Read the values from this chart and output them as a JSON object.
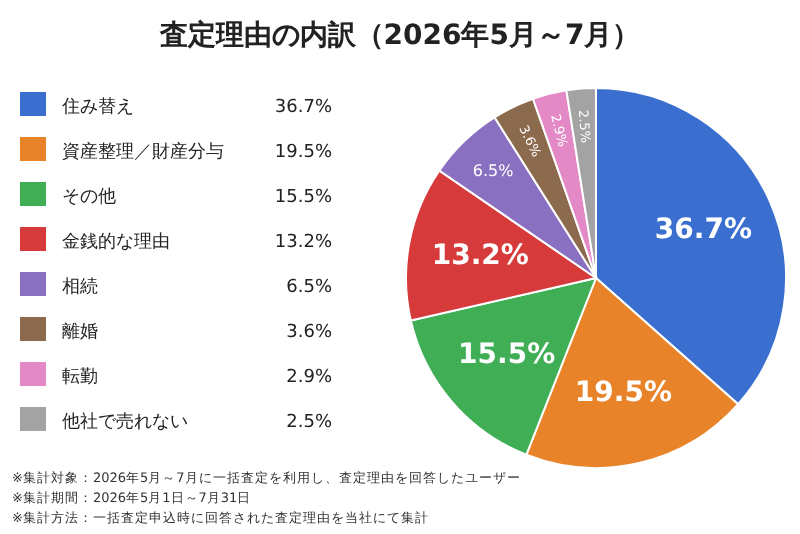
{
  "chart_data": {
    "type": "pie",
    "title": "査定理由の内訳（2026年5月～7月）",
    "categories": [
      "住み替え",
      "資産整理／財産分与",
      "その他",
      "金銭的な理由",
      "相続",
      "離婚",
      "転勤",
      "他社で売れない"
    ],
    "values": [
      36.7,
      19.5,
      15.5,
      13.2,
      6.5,
      3.6,
      2.9,
      2.5
    ],
    "colors": [
      "#3a6fd0",
      "#e8832a",
      "#3fae55",
      "#d63a3a",
      "#8a70c0",
      "#8b6a4e",
      "#e38ac6",
      "#a3a3a3"
    ],
    "value_labels": [
      "36.7%",
      "19.5%",
      "15.5%",
      "13.2%",
      "6.5%",
      "3.6%",
      "2.9%",
      "2.5%"
    ],
    "legend": "left",
    "annotations": [
      "※集計対象：2026年5月～7月に一括査定を利用し、査定理由を回答したユーザー",
      "※集計期間：2026年5月1日～7月31日",
      "※集計方法：一括査定申込時に回答された査定理由を当社にて集計"
    ]
  }
}
